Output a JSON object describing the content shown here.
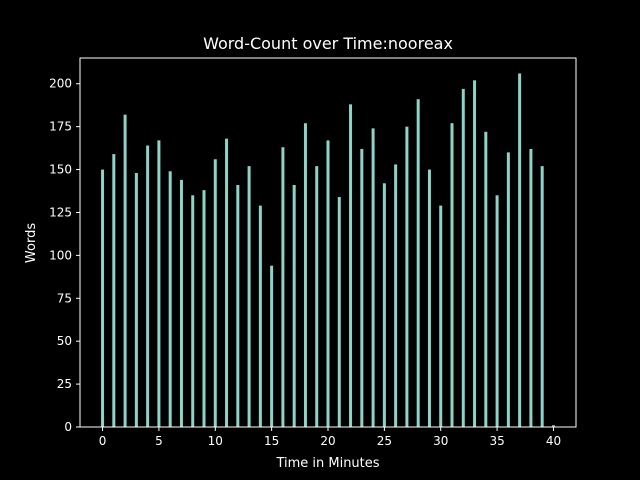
{
  "chart_data": {
    "type": "bar",
    "title": "Word-Count over Time:nooreax",
    "xlabel": "Time in Minutes",
    "ylabel": "Words",
    "xlim": [
      -2,
      42
    ],
    "ylim": [
      0,
      215
    ],
    "xticks": [
      0,
      5,
      10,
      15,
      20,
      25,
      30,
      35,
      40
    ],
    "yticks": [
      0,
      25,
      50,
      75,
      100,
      125,
      150,
      175,
      200
    ],
    "grid": false,
    "x": [
      0,
      1,
      2,
      3,
      4,
      5,
      6,
      7,
      8,
      9,
      10,
      11,
      12,
      13,
      14,
      15,
      16,
      17,
      18,
      19,
      20,
      21,
      22,
      23,
      24,
      25,
      26,
      27,
      28,
      29,
      30,
      31,
      32,
      33,
      34,
      35,
      36,
      37,
      38,
      39,
      40
    ],
    "values": [
      150,
      159,
      182,
      148,
      164,
      167,
      149,
      144,
      135,
      138,
      156,
      168,
      141,
      152,
      129,
      94,
      163,
      141,
      177,
      152,
      167,
      134,
      188,
      162,
      174,
      142,
      153,
      175,
      191,
      150,
      129,
      177,
      197,
      202,
      172,
      135,
      160,
      206,
      162,
      152,
      1
    ],
    "colors": {
      "bar": "#8dd3c7",
      "background": "#000000",
      "axes": "#ffffff"
    }
  }
}
